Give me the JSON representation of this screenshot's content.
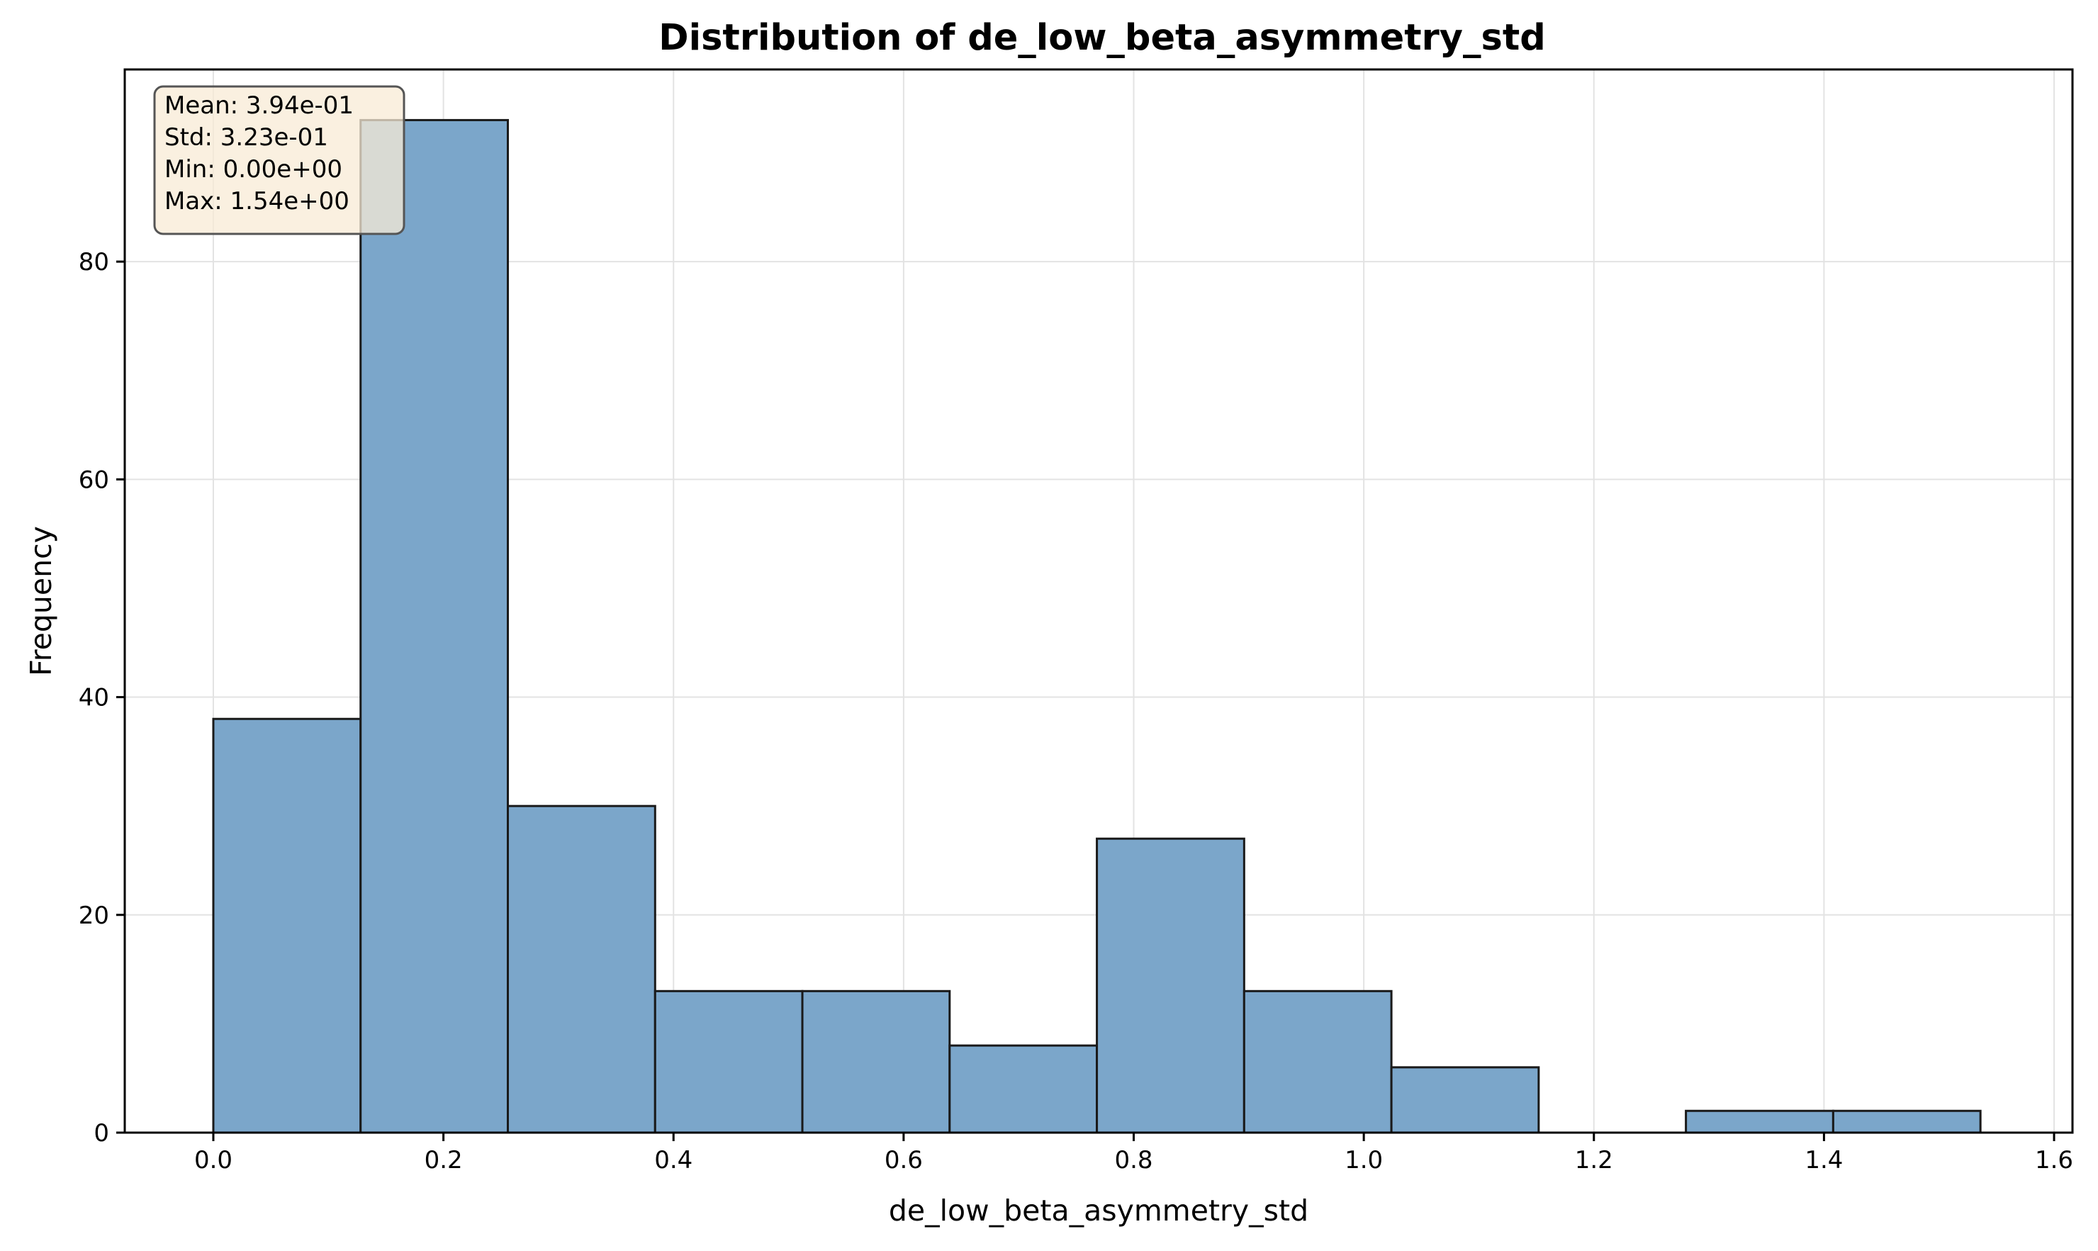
{
  "chart_data": {
    "type": "bar",
    "title": "Distribution of de_low_beta_asymmetry_std",
    "xlabel": "de_low_beta_asymmetry_std",
    "ylabel": "Frequency",
    "xlim": [
      -0.077,
      1.616
    ],
    "ylim": [
      0,
      97.65
    ],
    "xticks": [
      0.0,
      0.2,
      0.4,
      0.6,
      0.8,
      1.0,
      1.2,
      1.4,
      1.6
    ],
    "xtick_labels": [
      "0.0",
      "0.2",
      "0.4",
      "0.6",
      "0.8",
      "1.0",
      "1.2",
      "1.4",
      "1.6"
    ],
    "yticks": [
      0,
      20,
      40,
      60,
      80
    ],
    "ytick_labels": [
      "0",
      "20",
      "40",
      "60",
      "80"
    ],
    "grid": true,
    "bins": [
      {
        "x0": 0.0,
        "x1": 0.128,
        "count": 38
      },
      {
        "x0": 0.128,
        "x1": 0.256,
        "count": 93
      },
      {
        "x0": 0.256,
        "x1": 0.384,
        "count": 30
      },
      {
        "x0": 0.384,
        "x1": 0.512,
        "count": 13
      },
      {
        "x0": 0.512,
        "x1": 0.64,
        "count": 13
      },
      {
        "x0": 0.64,
        "x1": 0.768,
        "count": 8
      },
      {
        "x0": 0.768,
        "x1": 0.896,
        "count": 27
      },
      {
        "x0": 0.896,
        "x1": 1.024,
        "count": 13
      },
      {
        "x0": 1.024,
        "x1": 1.152,
        "count": 6
      },
      {
        "x0": 1.152,
        "x1": 1.28,
        "count": 0
      },
      {
        "x0": 1.28,
        "x1": 1.408,
        "count": 2
      },
      {
        "x0": 1.408,
        "x1": 1.536,
        "count": 2
      }
    ],
    "stats": {
      "lines": [
        "Mean: 3.94e-01",
        "Std: 3.23e-01",
        "Min: 0.00e+00",
        "Max: 1.54e+00"
      ],
      "placement": "top-left"
    },
    "colors": {
      "bar_fill": "#7ba6ca",
      "bar_edge": "#1a1a1a",
      "grid": "#e3e3e3",
      "stats_box_fill": "#f8ebd6",
      "stats_box_edge": "#555555"
    }
  }
}
